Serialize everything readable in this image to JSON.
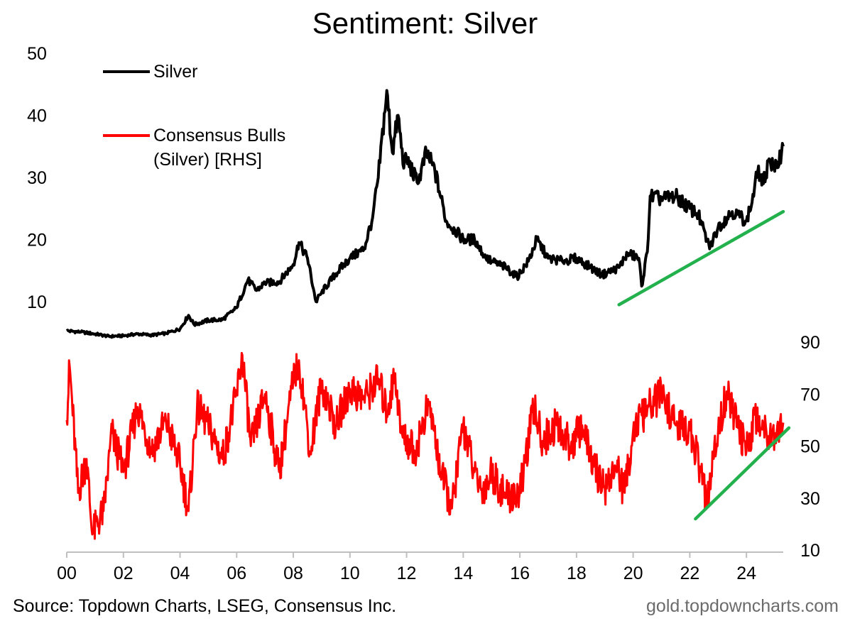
{
  "chart_data": {
    "type": "line",
    "title": "Sentiment: Silver",
    "x_axis": {
      "range": [
        2000,
        2025.3
      ],
      "tick_values": [
        2000,
        2002,
        2004,
        2006,
        2008,
        2010,
        2012,
        2014,
        2016,
        2018,
        2020,
        2022,
        2024
      ],
      "tick_labels": [
        "00",
        "02",
        "04",
        "06",
        "08",
        "10",
        "12",
        "14",
        "16",
        "18",
        "20",
        "22",
        "24"
      ]
    },
    "left_axis": {
      "ticks": [
        10,
        20,
        30,
        40,
        50
      ],
      "range": [
        0,
        50
      ]
    },
    "right_axis": {
      "ticks": [
        10,
        30,
        50,
        70,
        90
      ],
      "range": [
        10,
        90
      ]
    },
    "series": [
      {
        "name": "Silver",
        "axis": "left",
        "color": "#000000",
        "points": [
          [
            2000,
            5.3
          ],
          [
            2000.5,
            5.1
          ],
          [
            2001,
            4.8
          ],
          [
            2001.5,
            4.4
          ],
          [
            2002,
            4.5
          ],
          [
            2002.5,
            4.8
          ],
          [
            2003,
            4.6
          ],
          [
            2003.5,
            4.9
          ],
          [
            2004,
            5.6
          ],
          [
            2004.3,
            7.8
          ],
          [
            2004.5,
            6.3
          ],
          [
            2005,
            7.0
          ],
          [
            2005.5,
            7.1
          ],
          [
            2006,
            9.0
          ],
          [
            2006.3,
            12.5
          ],
          [
            2006.4,
            13.5
          ],
          [
            2006.7,
            11.8
          ],
          [
            2007,
            13.0
          ],
          [
            2007.5,
            13.2
          ],
          [
            2008,
            16.0
          ],
          [
            2008.2,
            19.5
          ],
          [
            2008.5,
            17.0
          ],
          [
            2008.8,
            10.0
          ],
          [
            2009,
            11.5
          ],
          [
            2009.5,
            14.5
          ],
          [
            2010,
            17.0
          ],
          [
            2010.5,
            18.5
          ],
          [
            2010.8,
            23.5
          ],
          [
            2011,
            30.0
          ],
          [
            2011.3,
            44.0
          ],
          [
            2011.5,
            34.0
          ],
          [
            2011.7,
            40.0
          ],
          [
            2011.9,
            31.5
          ],
          [
            2012,
            33.0
          ],
          [
            2012.4,
            29.0
          ],
          [
            2012.7,
            34.0
          ],
          [
            2013,
            31.0
          ],
          [
            2013.4,
            23.0
          ],
          [
            2013.7,
            21.5
          ],
          [
            2014,
            20.0
          ],
          [
            2014.4,
            20.0
          ],
          [
            2014.8,
            17.0
          ],
          [
            2015,
            16.5
          ],
          [
            2015.5,
            15.5
          ],
          [
            2015.9,
            14.0
          ],
          [
            2016.3,
            16.5
          ],
          [
            2016.6,
            20.0
          ],
          [
            2017,
            17.0
          ],
          [
            2017.5,
            16.5
          ],
          [
            2018,
            17.0
          ],
          [
            2018.5,
            15.5
          ],
          [
            2018.9,
            14.3
          ],
          [
            2019.5,
            15.5
          ],
          [
            2019.8,
            17.8
          ],
          [
            2020.2,
            17.0
          ],
          [
            2020.3,
            12.5
          ],
          [
            2020.5,
            18.0
          ],
          [
            2020.6,
            27.0
          ],
          [
            2021,
            26.5
          ],
          [
            2021.5,
            27.0
          ],
          [
            2022,
            25.0
          ],
          [
            2022.3,
            24.0
          ],
          [
            2022.7,
            18.5
          ],
          [
            2023,
            22.0
          ],
          [
            2023.5,
            24.5
          ],
          [
            2024,
            23.0
          ],
          [
            2024.2,
            26.0
          ],
          [
            2024.4,
            31.0
          ],
          [
            2024.6,
            29.0
          ],
          [
            2024.8,
            33.0
          ],
          [
            2025,
            31.0
          ],
          [
            2025.3,
            35.0
          ]
        ]
      },
      {
        "name": "Consensus Bulls\n(Silver) [RHS]",
        "axis": "right",
        "color": "#ff0000",
        "points": [
          [
            2000,
            60
          ],
          [
            2000.1,
            81
          ],
          [
            2000.4,
            32
          ],
          [
            2000.7,
            45
          ],
          [
            2000.9,
            16
          ],
          [
            2001.3,
            25
          ],
          [
            2001.6,
            55
          ],
          [
            2002,
            40
          ],
          [
            2002.5,
            65
          ],
          [
            2003,
            48
          ],
          [
            2003.5,
            60
          ],
          [
            2004,
            43
          ],
          [
            2004.3,
            25
          ],
          [
            2004.6,
            65
          ],
          [
            2005,
            58
          ],
          [
            2005.5,
            45
          ],
          [
            2006,
            70
          ],
          [
            2006.2,
            85
          ],
          [
            2006.5,
            50
          ],
          [
            2007,
            70
          ],
          [
            2007.5,
            40
          ],
          [
            2008,
            75
          ],
          [
            2008.2,
            83
          ],
          [
            2008.6,
            48
          ],
          [
            2009,
            74
          ],
          [
            2009.5,
            58
          ],
          [
            2010,
            72
          ],
          [
            2010.5,
            68
          ],
          [
            2011,
            76
          ],
          [
            2011.3,
            63
          ],
          [
            2011.6,
            78
          ],
          [
            2011.8,
            55
          ],
          [
            2012.3,
            48
          ],
          [
            2012.8,
            67
          ],
          [
            2013.2,
            40
          ],
          [
            2013.6,
            26
          ],
          [
            2014,
            58
          ],
          [
            2014.4,
            40
          ],
          [
            2014.7,
            32
          ],
          [
            2015,
            40
          ],
          [
            2015.5,
            30
          ],
          [
            2016,
            32
          ],
          [
            2016.5,
            65
          ],
          [
            2016.8,
            52
          ],
          [
            2017.3,
            58
          ],
          [
            2017.8,
            50
          ],
          [
            2018.2,
            58
          ],
          [
            2018.6,
            42
          ],
          [
            2019,
            34
          ],
          [
            2019.4,
            42
          ],
          [
            2019.7,
            32
          ],
          [
            2020,
            56
          ],
          [
            2020.5,
            64
          ],
          [
            2021,
            70
          ],
          [
            2021.5,
            58
          ],
          [
            2022,
            56
          ],
          [
            2022.4,
            40
          ],
          [
            2022.6,
            27
          ],
          [
            2023,
            56
          ],
          [
            2023.3,
            71
          ],
          [
            2023.7,
            57
          ],
          [
            2024,
            48
          ],
          [
            2024.3,
            62
          ],
          [
            2024.7,
            56
          ],
          [
            2025,
            55
          ],
          [
            2025.3,
            59
          ]
        ]
      }
    ],
    "trendlines": [
      {
        "axis": "left",
        "color": "#22b14c",
        "from": [
          2019.5,
          9.5
        ],
        "to": [
          2025.3,
          24.5
        ]
      },
      {
        "axis": "right",
        "color": "#22b14c",
        "from": [
          2022.2,
          22
        ],
        "to": [
          2025.5,
          57
        ]
      }
    ]
  },
  "footer": {
    "source": "Source: Topdown Charts, LSEG, Consensus Inc.",
    "site": "gold.topdowncharts.com"
  }
}
